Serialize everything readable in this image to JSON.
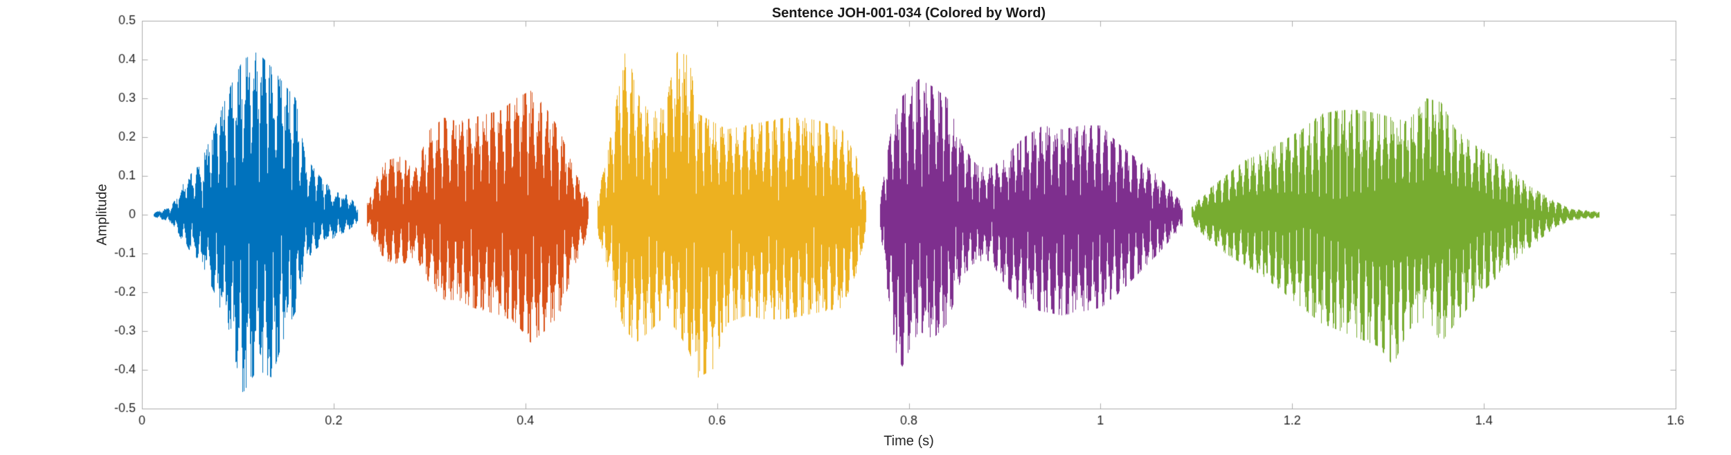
{
  "chart_data": {
    "type": "line",
    "subtype": "audio-waveform",
    "title": "Sentence JOH-001-034 (Colored by Word)",
    "xlabel": "Time (s)",
    "ylabel": "Amplitude",
    "xlim": [
      0,
      1.6
    ],
    "ylim": [
      -0.5,
      0.5
    ],
    "grid": false,
    "legend": "none",
    "xticks": [
      {
        "v": 0,
        "label": "0"
      },
      {
        "v": 0.2,
        "label": "0.2"
      },
      {
        "v": 0.4,
        "label": "0.4"
      },
      {
        "v": 0.6,
        "label": "0.6"
      },
      {
        "v": 0.8,
        "label": "0.8"
      },
      {
        "v": 1,
        "label": "1"
      },
      {
        "v": 1.2,
        "label": "1.2"
      },
      {
        "v": 1.4,
        "label": "1.4"
      },
      {
        "v": 1.6,
        "label": "1.6"
      }
    ],
    "yticks": [
      {
        "v": -0.5,
        "label": "-0.5"
      },
      {
        "v": -0.4,
        "label": "-0.4"
      },
      {
        "v": -0.3,
        "label": "-0.3"
      },
      {
        "v": -0.2,
        "label": "-0.2"
      },
      {
        "v": -0.1,
        "label": "-0.1"
      },
      {
        "v": 0,
        "label": "0"
      },
      {
        "v": 0.1,
        "label": "0.1"
      },
      {
        "v": 0.2,
        "label": "0.2"
      },
      {
        "v": 0.3,
        "label": "0.3"
      },
      {
        "v": 0.4,
        "label": "0.4"
      },
      {
        "v": 0.5,
        "label": "0.5"
      }
    ],
    "segments": [
      {
        "word_index": 1,
        "color": "#0072BD",
        "t_start": 0.012,
        "t_end": 0.225,
        "peak_pos": 0.42,
        "peak_neg": -0.46,
        "envelope": [
          [
            0.012,
            0.005,
            0.005
          ],
          [
            0.03,
            0.02,
            0.02
          ],
          [
            0.045,
            0.09,
            0.08
          ],
          [
            0.06,
            0.13,
            0.12
          ],
          [
            0.075,
            0.22,
            0.2
          ],
          [
            0.09,
            0.32,
            0.3
          ],
          [
            0.105,
            0.4,
            0.46
          ],
          [
            0.12,
            0.42,
            0.4
          ],
          [
            0.135,
            0.38,
            0.42
          ],
          [
            0.15,
            0.33,
            0.3
          ],
          [
            0.16,
            0.3,
            0.25
          ],
          [
            0.17,
            0.15,
            0.12
          ],
          [
            0.185,
            0.1,
            0.08
          ],
          [
            0.2,
            0.06,
            0.06
          ],
          [
            0.215,
            0.05,
            0.04
          ],
          [
            0.225,
            0.02,
            0.02
          ]
        ]
      },
      {
        "word_index": 2,
        "color": "#D95319",
        "t_start": 0.235,
        "t_end": 0.465,
        "peak_pos": 0.32,
        "peak_neg": -0.33,
        "envelope": [
          [
            0.235,
            0.03,
            0.03
          ],
          [
            0.245,
            0.1,
            0.09
          ],
          [
            0.255,
            0.14,
            0.12
          ],
          [
            0.27,
            0.15,
            0.13
          ],
          [
            0.285,
            0.12,
            0.11
          ],
          [
            0.3,
            0.22,
            0.18
          ],
          [
            0.315,
            0.25,
            0.22
          ],
          [
            0.33,
            0.24,
            0.22
          ],
          [
            0.345,
            0.25,
            0.24
          ],
          [
            0.36,
            0.26,
            0.25
          ],
          [
            0.375,
            0.27,
            0.26
          ],
          [
            0.39,
            0.3,
            0.28
          ],
          [
            0.405,
            0.32,
            0.33
          ],
          [
            0.42,
            0.28,
            0.3
          ],
          [
            0.435,
            0.22,
            0.26
          ],
          [
            0.45,
            0.12,
            0.14
          ],
          [
            0.465,
            0.04,
            0.05
          ]
        ]
      },
      {
        "word_index": 3,
        "color": "#EDB120",
        "t_start": 0.475,
        "t_end": 0.755,
        "peak_pos": 0.45,
        "peak_neg": -0.42,
        "envelope": [
          [
            0.475,
            0.05,
            0.05
          ],
          [
            0.485,
            0.15,
            0.13
          ],
          [
            0.495,
            0.3,
            0.25
          ],
          [
            0.505,
            0.45,
            0.3
          ],
          [
            0.515,
            0.32,
            0.33
          ],
          [
            0.53,
            0.26,
            0.3
          ],
          [
            0.545,
            0.28,
            0.26
          ],
          [
            0.558,
            0.42,
            0.3
          ],
          [
            0.57,
            0.41,
            0.35
          ],
          [
            0.58,
            0.26,
            0.42
          ],
          [
            0.595,
            0.24,
            0.4
          ],
          [
            0.61,
            0.22,
            0.28
          ],
          [
            0.63,
            0.23,
            0.26
          ],
          [
            0.65,
            0.24,
            0.27
          ],
          [
            0.67,
            0.25,
            0.27
          ],
          [
            0.69,
            0.25,
            0.26
          ],
          [
            0.71,
            0.24,
            0.25
          ],
          [
            0.73,
            0.22,
            0.24
          ],
          [
            0.745,
            0.15,
            0.15
          ],
          [
            0.755,
            0.05,
            0.05
          ]
        ]
      },
      {
        "word_index": 4,
        "color": "#7E2F8E",
        "t_start": 0.77,
        "t_end": 1.085,
        "peak_pos": 0.35,
        "peak_neg": -0.41,
        "envelope": [
          [
            0.77,
            0.04,
            0.04
          ],
          [
            0.78,
            0.2,
            0.25
          ],
          [
            0.79,
            0.3,
            0.41
          ],
          [
            0.8,
            0.32,
            0.35
          ],
          [
            0.81,
            0.35,
            0.3
          ],
          [
            0.825,
            0.33,
            0.32
          ],
          [
            0.84,
            0.3,
            0.28
          ],
          [
            0.855,
            0.18,
            0.16
          ],
          [
            0.87,
            0.13,
            0.12
          ],
          [
            0.885,
            0.12,
            0.12
          ],
          [
            0.9,
            0.15,
            0.18
          ],
          [
            0.92,
            0.2,
            0.24
          ],
          [
            0.94,
            0.23,
            0.25
          ],
          [
            0.96,
            0.22,
            0.26
          ],
          [
            0.98,
            0.23,
            0.25
          ],
          [
            1.0,
            0.23,
            0.24
          ],
          [
            1.02,
            0.18,
            0.2
          ],
          [
            1.04,
            0.14,
            0.15
          ],
          [
            1.06,
            0.1,
            0.1
          ],
          [
            1.085,
            0.03,
            0.03
          ]
        ]
      },
      {
        "word_index": 5,
        "color": "#77AC30",
        "t_start": 1.095,
        "t_end": 1.52,
        "peak_pos": 0.3,
        "peak_neg": -0.39,
        "envelope": [
          [
            1.095,
            0.02,
            0.02
          ],
          [
            1.11,
            0.06,
            0.06
          ],
          [
            1.13,
            0.1,
            0.1
          ],
          [
            1.15,
            0.14,
            0.13
          ],
          [
            1.17,
            0.16,
            0.16
          ],
          [
            1.19,
            0.19,
            0.2
          ],
          [
            1.21,
            0.22,
            0.24
          ],
          [
            1.23,
            0.26,
            0.28
          ],
          [
            1.25,
            0.27,
            0.3
          ],
          [
            1.27,
            0.27,
            0.32
          ],
          [
            1.29,
            0.26,
            0.34
          ],
          [
            1.305,
            0.25,
            0.39
          ],
          [
            1.32,
            0.24,
            0.3
          ],
          [
            1.34,
            0.3,
            0.26
          ],
          [
            1.355,
            0.29,
            0.33
          ],
          [
            1.37,
            0.22,
            0.28
          ],
          [
            1.39,
            0.18,
            0.22
          ],
          [
            1.41,
            0.15,
            0.17
          ],
          [
            1.43,
            0.11,
            0.12
          ],
          [
            1.45,
            0.07,
            0.08
          ],
          [
            1.47,
            0.04,
            0.04
          ],
          [
            1.49,
            0.015,
            0.015
          ],
          [
            1.52,
            0.008,
            0.008
          ]
        ]
      }
    ],
    "style": {
      "axis_line_color": "#ababab",
      "tick_label_color": "#262626",
      "title_color": "#1a1a1a",
      "background": "#ffffff"
    }
  }
}
